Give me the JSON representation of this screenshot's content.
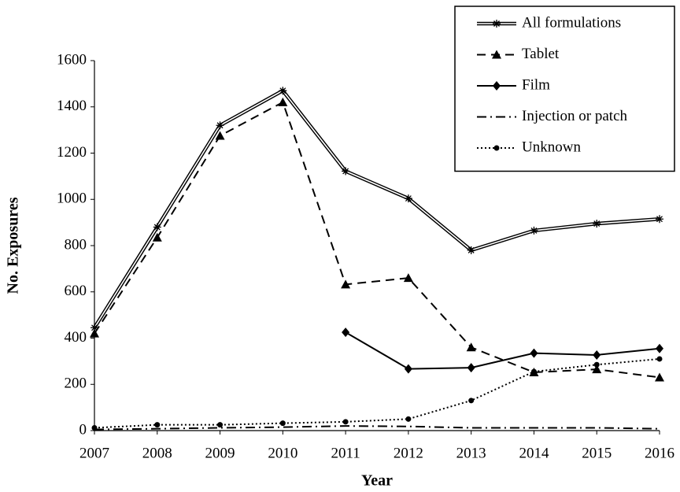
{
  "chart_data": {
    "type": "line",
    "x_label": "Year",
    "y_label": "No. Exposures",
    "x": [
      2007,
      2008,
      2009,
      2010,
      2011,
      2012,
      2013,
      2014,
      2015,
      2016
    ],
    "xlim": [
      2007,
      2016
    ],
    "xticks": [
      2007,
      2008,
      2009,
      2010,
      2011,
      2012,
      2013,
      2014,
      2015,
      2016
    ],
    "ylim": [
      0,
      1600
    ],
    "yticks": [
      0,
      200,
      400,
      600,
      800,
      1000,
      1200,
      1400,
      1600
    ],
    "grid": false,
    "legend": "top-right",
    "series": [
      {
        "name": "All formulations",
        "color": "#000000",
        "style": "double",
        "marker": "asterisk",
        "values": [
          445,
          880,
          1320,
          1470,
          1122,
          1004,
          780,
          865,
          895,
          915
        ]
      },
      {
        "name": "Tablet",
        "color": "#000000",
        "style": "dashed",
        "marker": "triangle",
        "values": [
          420,
          835,
          1275,
          1420,
          632,
          660,
          360,
          252,
          265,
          230
        ]
      },
      {
        "name": "Film",
        "color": "#000000",
        "style": "solid",
        "marker": "diamond",
        "values": [
          null,
          null,
          null,
          null,
          425,
          267,
          272,
          335,
          327,
          355
        ]
      },
      {
        "name": "Injection or patch",
        "color": "#000000",
        "style": "dashdot",
        "marker": "none",
        "values": [
          5,
          8,
          12,
          15,
          20,
          18,
          12,
          12,
          12,
          8
        ]
      },
      {
        "name": "Unknown",
        "color": "#000000",
        "style": "dotted",
        "marker": "circle",
        "values": [
          12,
          25,
          25,
          32,
          38,
          50,
          130,
          255,
          285,
          310
        ]
      }
    ]
  }
}
